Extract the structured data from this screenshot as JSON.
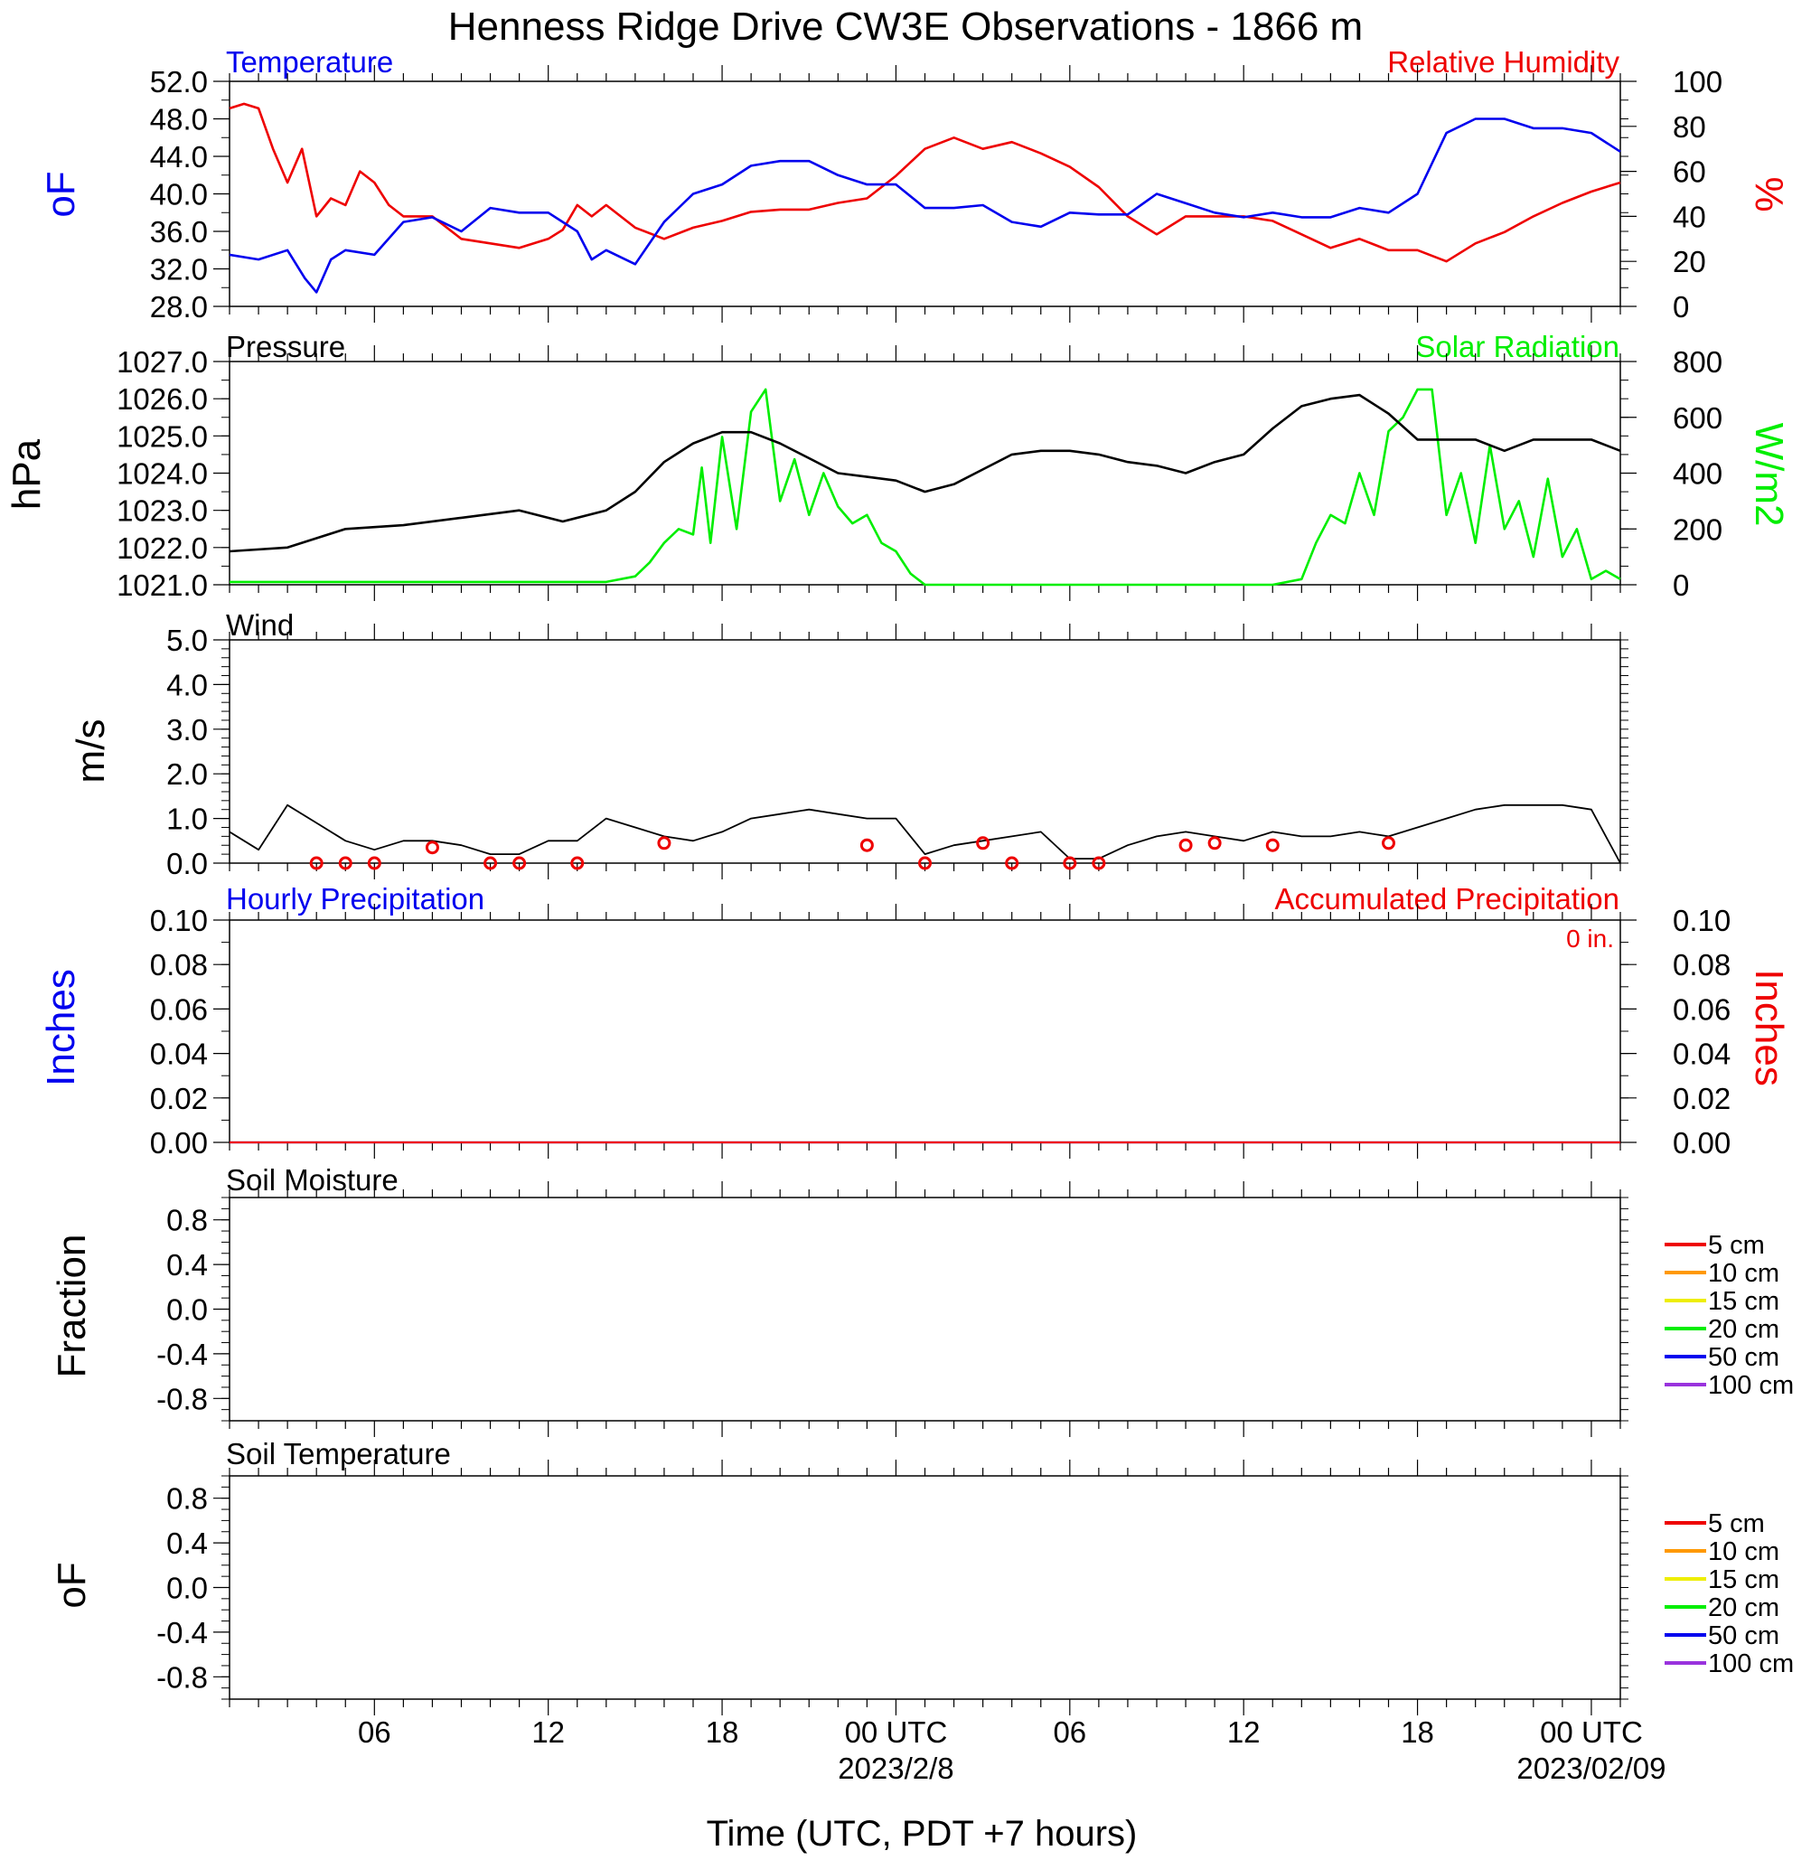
{
  "title": "Henness Ridge Drive CW3E Observations - 1866 m",
  "colors": {
    "temperature": "#0000ee",
    "humidity": "#ee0000",
    "pressure": "#000000",
    "solar": "#00ee00",
    "wind": "#000000",
    "wind_marker": "#ee0000",
    "hourly_precip": "#0000ee",
    "accum_precip": "#ee0000",
    "axis": "#000000"
  },
  "xaxis": {
    "label": "Time (UTC, PDT +7 hours)",
    "tick_labels": [
      "06",
      "12",
      "18",
      "00 UTC",
      "06",
      "12",
      "18",
      "00 UTC"
    ],
    "tick_hours": [
      6,
      12,
      18,
      24,
      30,
      36,
      42,
      48
    ],
    "date_labels": [
      {
        "hour": 24,
        "text": "2023/2/8"
      },
      {
        "hour": 48,
        "text": "2023/02/09"
      }
    ],
    "range_hours": [
      1,
      49
    ]
  },
  "panels": {
    "temp_rh": {
      "left_title": "Temperature",
      "right_title": "Relative Humidity",
      "left_units": "oF",
      "right_units": "%",
      "left_ticks": [
        "52.0",
        "48.0",
        "44.0",
        "40.0",
        "36.0",
        "32.0",
        "28.0"
      ],
      "right_ticks": [
        "100",
        "80",
        "60",
        "40",
        "20",
        "0"
      ]
    },
    "pressure_solar": {
      "left_title": "Pressure",
      "right_title": "Solar Radiation",
      "left_units": "hPa",
      "right_units": "W/m2",
      "left_ticks": [
        "1027.0",
        "1026.0",
        "1025.0",
        "1024.0",
        "1023.0",
        "1022.0",
        "1021.0"
      ],
      "right_ticks": [
        "800",
        "600",
        "400",
        "200",
        "0"
      ]
    },
    "wind": {
      "left_title": "Wind",
      "left_units": "m/s",
      "left_ticks": [
        "5.0",
        "4.0",
        "3.0",
        "2.0",
        "1.0",
        "0.0"
      ]
    },
    "precip": {
      "left_title": "Hourly Precipitation",
      "right_title": "Accumulated Precipitation",
      "accum_label": "0 in.",
      "left_units": "Inches",
      "right_units": "Inches",
      "left_ticks": [
        "0.10",
        "0.08",
        "0.06",
        "0.04",
        "0.02",
        "0.00"
      ],
      "right_ticks": [
        "0.10",
        "0.08",
        "0.06",
        "0.04",
        "0.02",
        "0.00"
      ]
    },
    "soil_moisture": {
      "left_title": "Soil Moisture",
      "left_units": "Fraction",
      "left_ticks": [
        "0.8",
        "0.4",
        "0.0",
        "-0.4",
        "-0.8"
      ],
      "legend": [
        {
          "label": "5 cm",
          "color": "#ee0000"
        },
        {
          "label": "10 cm",
          "color": "#ff9900"
        },
        {
          "label": "15 cm",
          "color": "#eeee00"
        },
        {
          "label": "20 cm",
          "color": "#00ee00"
        },
        {
          "label": "50 cm",
          "color": "#0000ee"
        },
        {
          "label": "100 cm",
          "color": "#9933dd"
        }
      ]
    },
    "soil_temperature": {
      "left_title": "Soil Temperature",
      "left_units": "oF",
      "left_ticks": [
        "0.8",
        "0.4",
        "0.0",
        "-0.4",
        "-0.8"
      ],
      "legend": [
        {
          "label": "5 cm",
          "color": "#ee0000"
        },
        {
          "label": "10 cm",
          "color": "#ff9900"
        },
        {
          "label": "15 cm",
          "color": "#eeee00"
        },
        {
          "label": "20 cm",
          "color": "#00ee00"
        },
        {
          "label": "50 cm",
          "color": "#0000ee"
        },
        {
          "label": "100 cm",
          "color": "#9933dd"
        }
      ]
    }
  },
  "chart_data": [
    {
      "type": "line",
      "panel": "temp_rh",
      "ylim": [
        28,
        52
      ],
      "y2lim": [
        0,
        100
      ],
      "series": [
        {
          "name": "Temperature",
          "axis": "left",
          "x": [
            1,
            2,
            3,
            3.6,
            4,
            4.5,
            5,
            6,
            7,
            8,
            9,
            10,
            11,
            12,
            12.5,
            13,
            13.5,
            14,
            15,
            16,
            17,
            18,
            19,
            20,
            21,
            22,
            23,
            24,
            25,
            26,
            27,
            28,
            29,
            30,
            31,
            32,
            33,
            34,
            35,
            36,
            37,
            38,
            39,
            40,
            41,
            42,
            43,
            44,
            45,
            46,
            47,
            48,
            49
          ],
          "y": [
            33.5,
            33,
            34,
            31,
            29.5,
            33,
            34,
            33.5,
            37,
            37.5,
            36,
            38.5,
            38,
            38,
            37,
            36,
            33,
            34,
            32.5,
            37,
            40,
            41,
            43,
            43.5,
            43.5,
            42,
            41,
            41,
            38.5,
            38.5,
            38.8,
            37,
            36.5,
            38,
            37.8,
            37.8,
            40,
            39,
            38,
            37.5,
            38,
            37.5,
            37.5,
            38.5,
            38,
            40,
            46.5,
            48,
            48,
            47,
            47,
            46.5,
            44.5
          ]
        },
        {
          "name": "Relative Humidity",
          "axis": "right",
          "x": [
            1,
            1.5,
            2,
            2.5,
            3,
            3.5,
            4,
            4.5,
            5,
            5.5,
            6,
            6.5,
            7,
            8,
            9,
            10,
            11,
            12,
            12.5,
            13,
            13.5,
            14,
            15,
            16,
            17,
            18,
            19,
            20,
            21,
            22,
            23,
            24,
            25,
            26,
            27,
            28,
            29,
            30,
            31,
            32,
            33,
            34,
            35,
            36,
            37,
            38,
            39,
            40,
            41,
            42,
            43,
            44,
            45,
            46,
            47,
            48,
            49
          ],
          "y": [
            88,
            90,
            88,
            70,
            55,
            70,
            40,
            48,
            45,
            60,
            55,
            45,
            40,
            40,
            30,
            28,
            26,
            30,
            34,
            45,
            40,
            45,
            35,
            30,
            35,
            38,
            42,
            43,
            43,
            46,
            48,
            58,
            70,
            75,
            70,
            73,
            68,
            62,
            53,
            40,
            32,
            40,
            40,
            40,
            38,
            32,
            26,
            30,
            25,
            25,
            20,
            28,
            33,
            40,
            46,
            51,
            55
          ]
        }
      ]
    },
    {
      "type": "line",
      "panel": "pressure_solar",
      "ylim": [
        1021,
        1027
      ],
      "y2lim": [
        0,
        800
      ],
      "series": [
        {
          "name": "Pressure",
          "axis": "left",
          "x": [
            1,
            3,
            5,
            7,
            9,
            11,
            12.5,
            14,
            15,
            16,
            17,
            18,
            19,
            20,
            21,
            22,
            23,
            24,
            25,
            26,
            27,
            28,
            29,
            30,
            31,
            32,
            33,
            34,
            35,
            36,
            37,
            38,
            39,
            40,
            41,
            42,
            43,
            44,
            45,
            46,
            47,
            48,
            49
          ],
          "y": [
            1021.9,
            1022.0,
            1022.5,
            1022.6,
            1022.8,
            1023.0,
            1022.7,
            1023.0,
            1023.5,
            1024.3,
            1024.8,
            1025.1,
            1025.1,
            1024.8,
            1024.4,
            1024.0,
            1023.9,
            1023.8,
            1023.5,
            1023.7,
            1024.1,
            1024.5,
            1024.6,
            1024.6,
            1024.5,
            1024.3,
            1024.2,
            1024.0,
            1024.3,
            1024.5,
            1025.2,
            1025.8,
            1026.0,
            1026.1,
            1025.6,
            1024.9,
            1024.9,
            1024.9,
            1024.6,
            1024.9,
            1024.9,
            1024.9,
            1024.6
          ]
        },
        {
          "name": "Solar Radiation",
          "axis": "right",
          "x": [
            1,
            14,
            15,
            15.5,
            16,
            16.5,
            17,
            17.3,
            17.6,
            18,
            18.5,
            19,
            19.5,
            20,
            20.5,
            21,
            21.5,
            22,
            22.5,
            23,
            23.5,
            24,
            24.5,
            25,
            28,
            37,
            38,
            38.5,
            39,
            39.5,
            40,
            40.5,
            41,
            41.5,
            42,
            42.5,
            43,
            43.5,
            44,
            44.5,
            45,
            45.5,
            46,
            46.5,
            47,
            47.5,
            48,
            48.5,
            49
          ],
          "y": [
            10,
            10,
            30,
            80,
            150,
            200,
            180,
            420,
            150,
            530,
            200,
            620,
            700,
            300,
            450,
            250,
            400,
            280,
            220,
            250,
            150,
            120,
            40,
            0,
            0,
            0,
            20,
            150,
            250,
            220,
            400,
            250,
            550,
            600,
            700,
            700,
            250,
            400,
            150,
            500,
            200,
            300,
            100,
            380,
            100,
            200,
            20,
            50,
            20
          ]
        }
      ]
    },
    {
      "type": "line",
      "panel": "wind",
      "ylim": [
        0,
        5
      ],
      "series": [
        {
          "name": "Wind",
          "x": [
            1,
            2,
            3,
            4,
            5,
            6,
            7,
            8,
            9,
            10,
            11,
            12,
            13,
            14,
            15,
            16,
            17,
            18,
            19,
            20,
            21,
            22,
            23,
            24,
            25,
            26,
            27,
            28,
            29,
            30,
            31,
            32,
            33,
            34,
            35,
            36,
            37,
            38,
            39,
            40,
            41,
            42,
            43,
            44,
            45,
            46,
            47,
            48,
            49
          ],
          "y": [
            0.7,
            0.3,
            1.3,
            0.9,
            0.5,
            0.3,
            0.5,
            0.5,
            0.4,
            0.2,
            0.2,
            0.5,
            0.5,
            1.0,
            0.8,
            0.6,
            0.5,
            0.7,
            1.0,
            1.1,
            1.2,
            1.1,
            1.0,
            1.0,
            0.2,
            0.4,
            0.5,
            0.6,
            0.7,
            0.1,
            0.1,
            0.4,
            0.6,
            0.7,
            0.6,
            0.5,
            0.7,
            0.6,
            0.6,
            0.7,
            0.6,
            0.8,
            1.0,
            1.2,
            1.3,
            1.3,
            1.3,
            1.2,
            0.0
          ]
        }
      ],
      "calm_markers_hours": [
        4,
        5,
        6,
        8,
        10,
        11,
        13,
        16,
        23,
        25,
        27,
        28,
        30,
        31,
        34,
        35,
        37,
        41
      ],
      "calm_markers_values": [
        0.0,
        0.0,
        0.0,
        0.35,
        0.0,
        0.0,
        0.0,
        0.45,
        0.4,
        0.0,
        0.45,
        0.0,
        0.0,
        0.0,
        0.4,
        0.45,
        0.4,
        0.45
      ]
    },
    {
      "type": "line",
      "panel": "precip",
      "ylim": [
        0,
        0.1
      ],
      "series": [
        {
          "name": "Hourly Precipitation",
          "x": [
            1,
            49
          ],
          "y": [
            0,
            0
          ]
        },
        {
          "name": "Accumulated Precipitation",
          "x": [
            1,
            49
          ],
          "y": [
            0,
            0
          ]
        }
      ]
    },
    {
      "type": "line",
      "panel": "soil_moisture",
      "ylim": [
        -1,
        1
      ],
      "series": []
    },
    {
      "type": "line",
      "panel": "soil_temperature",
      "ylim": [
        -1,
        1
      ],
      "series": []
    }
  ]
}
